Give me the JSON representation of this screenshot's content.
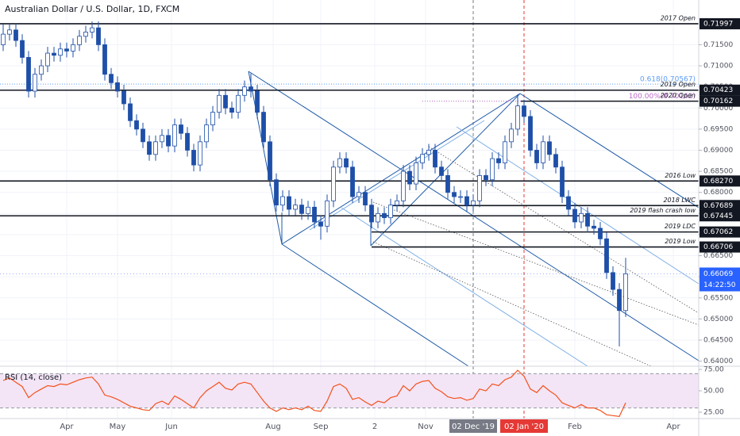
{
  "chart_data": [
    {
      "type": "candlestick",
      "title": "Australian Dollar / U.S. Dollar, 1D, FXCM",
      "xlim": [
        -0.5,
        109.5
      ],
      "ylim": [
        0.6388,
        0.7256
      ],
      "xticks": [
        {
          "value": 10,
          "label": "Apr"
        },
        {
          "value": 18,
          "label": "May"
        },
        {
          "value": 26.5,
          "label": "Jun"
        },
        {
          "value": 42.5,
          "label": "Aug"
        },
        {
          "value": 50,
          "label": "Sep"
        },
        {
          "value": 58.5,
          "label": "2"
        },
        {
          "value": 66.5,
          "label": "Nov"
        },
        {
          "value": 90,
          "label": "Feb"
        },
        {
          "value": 105.5,
          "label": "Apr"
        }
      ],
      "marker_lines": [
        {
          "x": 74,
          "label": "02 Dec '19",
          "color": "#787b86"
        },
        {
          "x": 82,
          "label": "02 Jan '20",
          "color": "#e53935"
        }
      ],
      "yticks": [
        {
          "value": 0.64,
          "label": "0.64000"
        },
        {
          "value": 0.645,
          "label": "0.64500"
        },
        {
          "value": 0.65,
          "label": "0.65000"
        },
        {
          "value": 0.655,
          "label": "0.65500"
        },
        {
          "value": 0.66,
          "label": "0.66000"
        },
        {
          "value": 0.665,
          "label": "0.66500"
        },
        {
          "value": 0.67,
          "label": "0.67000"
        },
        {
          "value": 0.675,
          "label": "0.67500"
        },
        {
          "value": 0.68,
          "label": "0.68000"
        },
        {
          "value": 0.685,
          "label": "0.68500"
        },
        {
          "value": 0.69,
          "label": "0.69000"
        },
        {
          "value": 0.695,
          "label": "0.69500"
        },
        {
          "value": 0.7,
          "label": "0.70000"
        },
        {
          "value": 0.705,
          "label": "0.70500"
        },
        {
          "value": 0.71,
          "label": "0.71000"
        },
        {
          "value": 0.715,
          "label": "0.71500"
        }
      ],
      "grid": true,
      "up_color": "#ffffff",
      "down_color": "#1e4fa8",
      "edge_color": "#1e4fa8",
      "open": [
        0.715,
        0.7175,
        0.7185,
        0.716,
        0.712,
        0.704,
        0.708,
        0.71,
        0.713,
        0.7125,
        0.714,
        0.7135,
        0.715,
        0.717,
        0.718,
        0.719,
        0.715,
        0.708,
        0.706,
        0.704,
        0.701,
        0.697,
        0.695,
        0.692,
        0.689,
        0.692,
        0.6935,
        0.691,
        0.696,
        0.694,
        0.69,
        0.6865,
        0.692,
        0.696,
        0.699,
        0.703,
        0.7,
        0.699,
        0.703,
        0.705,
        0.704,
        0.699,
        0.692,
        0.683,
        0.677,
        0.679,
        0.676,
        0.677,
        0.675,
        0.6765,
        0.673,
        0.672,
        0.678,
        0.686,
        0.688,
        0.686,
        0.679,
        0.68,
        0.677,
        0.673,
        0.675,
        0.674,
        0.677,
        0.678,
        0.685,
        0.682,
        0.687,
        0.689,
        0.69,
        0.686,
        0.684,
        0.68,
        0.679,
        0.679,
        0.677,
        0.678,
        0.684,
        0.683,
        0.688,
        0.687,
        0.692,
        0.695,
        0.7005,
        0.698,
        0.69,
        0.687,
        0.692,
        0.689,
        0.686,
        0.679,
        0.676,
        0.673,
        0.675,
        0.672,
        0.6715,
        0.669,
        0.661,
        0.657,
        0.652
      ],
      "high": [
        0.7199,
        0.72,
        0.72,
        0.7175,
        0.7135,
        0.7095,
        0.7115,
        0.7145,
        0.7145,
        0.7155,
        0.7155,
        0.7165,
        0.7185,
        0.7195,
        0.7205,
        0.7205,
        0.7165,
        0.7095,
        0.7075,
        0.7055,
        0.7025,
        0.6985,
        0.6965,
        0.6935,
        0.6935,
        0.695,
        0.695,
        0.6975,
        0.6975,
        0.6955,
        0.6915,
        0.6935,
        0.6975,
        0.7005,
        0.7045,
        0.7045,
        0.7015,
        0.7045,
        0.7065,
        0.7082,
        0.7055,
        0.7005,
        0.6935,
        0.6845,
        0.6805,
        0.6805,
        0.6785,
        0.6785,
        0.678,
        0.678,
        0.6745,
        0.6795,
        0.6875,
        0.6895,
        0.6895,
        0.6875,
        0.6815,
        0.6815,
        0.6785,
        0.6765,
        0.6765,
        0.6785,
        0.6795,
        0.6865,
        0.6865,
        0.6885,
        0.6905,
        0.6915,
        0.6915,
        0.6875,
        0.6855,
        0.6815,
        0.6805,
        0.6805,
        0.6795,
        0.6855,
        0.6855,
        0.6895,
        0.6895,
        0.6935,
        0.6965,
        0.7032,
        0.702,
        0.6995,
        0.6915,
        0.6935,
        0.6935,
        0.6905,
        0.6875,
        0.6805,
        0.6775,
        0.6765,
        0.6765,
        0.6735,
        0.673,
        0.6705,
        0.6625,
        0.6585,
        0.6645
      ],
      "low": [
        0.7135,
        0.716,
        0.7145,
        0.7105,
        0.7025,
        0.7025,
        0.7065,
        0.7085,
        0.711,
        0.711,
        0.712,
        0.712,
        0.7135,
        0.7155,
        0.7165,
        0.7135,
        0.7065,
        0.7045,
        0.7025,
        0.6995,
        0.6955,
        0.6935,
        0.6905,
        0.6875,
        0.6875,
        0.6905,
        0.6895,
        0.6895,
        0.6925,
        0.6885,
        0.685,
        0.685,
        0.6905,
        0.6945,
        0.6975,
        0.6985,
        0.6975,
        0.6975,
        0.7015,
        0.7025,
        0.6975,
        0.6905,
        0.6815,
        0.6755,
        0.6755,
        0.6745,
        0.6745,
        0.6735,
        0.6735,
        0.6715,
        0.6688,
        0.6705,
        0.6765,
        0.6845,
        0.6845,
        0.6775,
        0.6775,
        0.6755,
        0.6715,
        0.6715,
        0.6725,
        0.6725,
        0.6755,
        0.6765,
        0.6805,
        0.6805,
        0.6855,
        0.6875,
        0.6845,
        0.6825,
        0.6785,
        0.6775,
        0.6775,
        0.6755,
        0.6755,
        0.6765,
        0.6815,
        0.6815,
        0.6855,
        0.6855,
        0.6905,
        0.6935,
        0.6965,
        0.6885,
        0.6855,
        0.6855,
        0.6875,
        0.6845,
        0.6775,
        0.6745,
        0.6715,
        0.6715,
        0.6705,
        0.67,
        0.6675,
        0.6595,
        0.6555,
        0.6435,
        0.6505
      ],
      "close": [
        0.7175,
        0.7185,
        0.716,
        0.712,
        0.704,
        0.708,
        0.71,
        0.713,
        0.7125,
        0.714,
        0.7135,
        0.715,
        0.717,
        0.718,
        0.719,
        0.715,
        0.708,
        0.706,
        0.704,
        0.701,
        0.697,
        0.695,
        0.692,
        0.689,
        0.692,
        0.6935,
        0.691,
        0.696,
        0.694,
        0.69,
        0.6865,
        0.692,
        0.696,
        0.699,
        0.703,
        0.7,
        0.699,
        0.703,
        0.705,
        0.704,
        0.699,
        0.692,
        0.683,
        0.677,
        0.679,
        0.676,
        0.677,
        0.675,
        0.6765,
        0.673,
        0.672,
        0.678,
        0.686,
        0.688,
        0.686,
        0.679,
        0.68,
        0.677,
        0.673,
        0.675,
        0.674,
        0.677,
        0.678,
        0.685,
        0.682,
        0.687,
        0.689,
        0.69,
        0.686,
        0.684,
        0.68,
        0.679,
        0.679,
        0.677,
        0.678,
        0.684,
        0.683,
        0.688,
        0.687,
        0.692,
        0.695,
        0.7005,
        0.698,
        0.69,
        0.687,
        0.692,
        0.689,
        0.686,
        0.679,
        0.676,
        0.673,
        0.675,
        0.672,
        0.6715,
        0.669,
        0.661,
        0.657,
        0.652,
        0.6607
      ],
      "levels": [
        {
          "label": "2017 Open",
          "value": 0.71997,
          "value_label": "0.71997",
          "x_from": -0.5
        },
        {
          "label": "2019 Open",
          "value": 0.70423,
          "value_label": "0.70423",
          "x_from": -0.5
        },
        {
          "label": "2020 Open",
          "value": 0.70162,
          "value_label": "0.70162",
          "x_from": 81.5
        },
        {
          "label": "2016 Low",
          "value": 0.6827,
          "value_label": "0.68270",
          "x_from": -0.5
        },
        {
          "label": "2018 LWC",
          "value": 0.67689,
          "value_label": "0.67689",
          "x_from": 61
        },
        {
          "label": "2019 flash crash low",
          "value": 0.67445,
          "value_label": "0.67445",
          "x_from": -0.5
        },
        {
          "label": "2019 LDC",
          "value": 0.67062,
          "value_label": "0.67062",
          "x_from": 58
        },
        {
          "label": "2019 Low",
          "value": 0.66706,
          "value_label": "0.66706",
          "x_from": 58
        }
      ],
      "fib_levels": [
        {
          "label": "0.618(0.70567)",
          "value": 0.70567,
          "color": "#5b9cf6",
          "x_from": -0.5
        },
        {
          "label": "100.00%(0.70162)",
          "value": 0.70162,
          "color": "#ba68c8",
          "x_from": 66
        }
      ],
      "last_price": {
        "value": 0.66069,
        "label": "0.66069"
      },
      "countdown": "14:22:50"
    },
    {
      "type": "line",
      "title": "RSI (14, close)",
      "color": "#f4511e",
      "xlim": [
        -0.5,
        109.5
      ],
      "ylim": [
        17.6,
        78.7
      ],
      "yticks": [
        {
          "value": 25,
          "label": "25.00"
        },
        {
          "value": 50,
          "label": "50.00"
        },
        {
          "value": 75,
          "label": "75.00"
        }
      ],
      "band": [
        30,
        70
      ],
      "band_color": "#f3e5f5",
      "values": [
        62,
        65,
        60,
        55,
        42,
        48,
        52,
        56,
        55,
        58,
        57,
        60,
        63,
        65,
        66,
        58,
        45,
        43,
        40,
        36,
        32,
        30,
        28,
        27,
        35,
        38,
        34,
        44,
        40,
        35,
        30,
        42,
        50,
        55,
        60,
        53,
        51,
        58,
        60,
        58,
        48,
        38,
        30,
        26,
        30,
        28,
        30,
        28,
        32,
        27,
        26,
        38,
        55,
        58,
        53,
        40,
        42,
        37,
        33,
        38,
        36,
        42,
        44,
        56,
        50,
        58,
        61,
        62,
        53,
        49,
        43,
        41,
        42,
        39,
        41,
        52,
        50,
        58,
        56,
        63,
        66,
        74,
        67,
        52,
        48,
        56,
        50,
        45,
        36,
        33,
        30,
        34,
        30,
        30,
        27,
        22,
        21,
        20,
        36
      ]
    }
  ]
}
